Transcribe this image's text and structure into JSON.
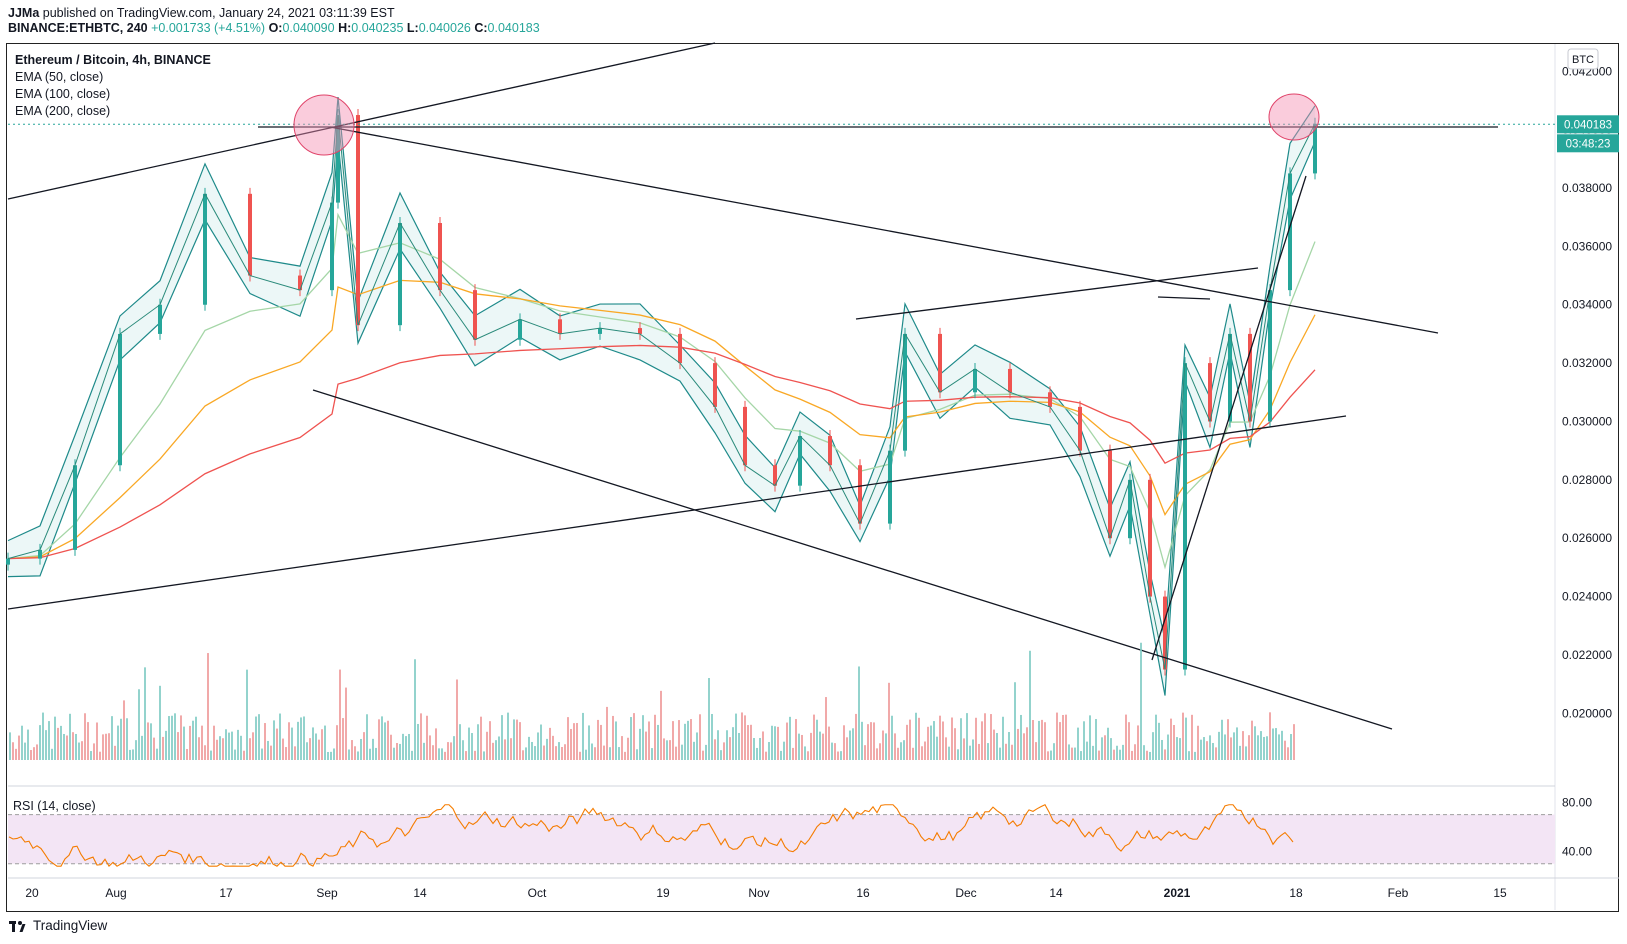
{
  "header": {
    "line1_user": "JJMa",
    "line1_text": "published on TradingView.com, January 24, 2021 03:11:39 EST",
    "symbol": "BINANCE:ETHBTC, 240",
    "change": "+0.001733 (+4.51%)",
    "o_label": "O:",
    "o_value": "0.040090",
    "h_label": "H:",
    "h_value": "0.040235",
    "l_label": "L:",
    "l_value": "0.040026",
    "c_label": "C:",
    "c_value": "0.040183"
  },
  "legend": {
    "title": "Ethereum / Bitcoin, 4h, BINANCE",
    "ema1": "EMA (50, close)",
    "ema2": "EMA (100, close)",
    "ema3": "EMA (200, close)"
  },
  "rsi_label": "RSI (14, close)",
  "currency_badge": "BTC",
  "price_tag": "0.040183",
  "countdown": "03:48:23",
  "footer_brand": "TradingView",
  "colors": {
    "up": "#26a69a",
    "down": "#ef5350",
    "ema50": "#a5d6a7",
    "ema100": "#f9a825",
    "ema200": "#ef5350",
    "bollinger": "#1e8a8a",
    "rsi": "#f57c00",
    "rsi_band": "#f3e5f5",
    "accent": "#2196f3",
    "highlight": "#f48fb1"
  },
  "chart_data": {
    "type": "line",
    "title": "Ethereum / Bitcoin, 4h, BINANCE",
    "y_axis_ticks": [
      "0.042000",
      "0.040000",
      "0.038000",
      "0.036000",
      "0.034000",
      "0.032000",
      "0.030000",
      "0.028000",
      "0.026000",
      "0.024000",
      "0.022000",
      "0.020000"
    ],
    "ylim": [
      0.0184,
      0.0429
    ],
    "x_axis_ticks": [
      "20",
      "Aug",
      "17",
      "Sep",
      "14",
      "Oct",
      "19",
      "Nov",
      "16",
      "Dec",
      "14",
      "2021",
      "18",
      "Feb",
      "15"
    ],
    "rsi_ticks": [
      "80.00",
      "40.00"
    ],
    "last_price": 0.040183,
    "series": [
      {
        "name": "ETHBTC",
        "x": [
          "Jul 20",
          "Jul 25",
          "Jul 30",
          "Aug 4",
          "Aug 10",
          "Aug 15",
          "Aug 20",
          "Aug 25",
          "Aug 31",
          "Sep 3",
          "Sep 5",
          "Sep 10",
          "Sep 15",
          "Sep 20",
          "Sep 25",
          "Sep 30",
          "Oct 5",
          "Oct 10",
          "Oct 15",
          "Oct 20",
          "Oct 25",
          "Oct 31",
          "Nov 5",
          "Nov 10",
          "Nov 15",
          "Nov 20",
          "Nov 23",
          "Nov 28",
          "Dec 3",
          "Dec 8",
          "Dec 13",
          "Dec 18",
          "Dec 23",
          "Dec 27",
          "Dec 31",
          "Jan 3",
          "Jan 6",
          "Jan 9",
          "Jan 12",
          "Jan 15",
          "Jan 18",
          "Jan 21",
          "Jan 24"
        ],
        "values": [
          0.0253,
          0.0256,
          0.0285,
          0.033,
          0.034,
          0.0378,
          0.035,
          0.0345,
          0.0375,
          0.0405,
          0.0333,
          0.0368,
          0.0345,
          0.0328,
          0.0335,
          0.033,
          0.0332,
          0.033,
          0.032,
          0.0305,
          0.0285,
          0.0278,
          0.0295,
          0.0285,
          0.0265,
          0.029,
          0.033,
          0.031,
          0.0318,
          0.031,
          0.0305,
          0.029,
          0.026,
          0.028,
          0.024,
          0.0215,
          0.032,
          0.03,
          0.033,
          0.03,
          0.0345,
          0.0385,
          0.0402
        ]
      }
    ],
    "annotations": [
      "trend lines (black)",
      "two pink circles marking tops"
    ]
  }
}
